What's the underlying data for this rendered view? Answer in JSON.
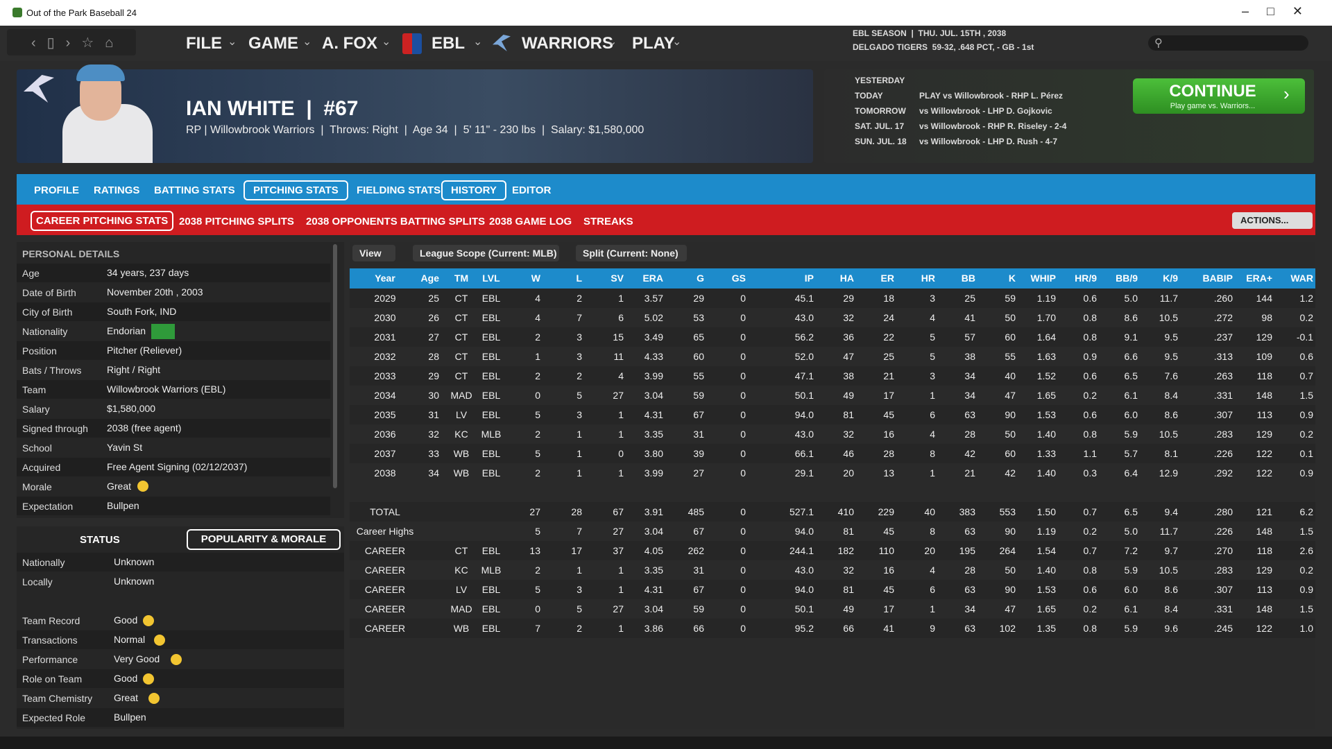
{
  "window": {
    "title": "Out of the Park Baseball 24"
  },
  "nav": {
    "menus": [
      "FILE",
      "GAME",
      "A. FOX",
      "EBL",
      "WARRIORS",
      "PLAY"
    ]
  },
  "league_status": {
    "season": "EBL SEASON  |  THU. JUL. 15TH , 2038",
    "standing": "DELGADO TIGERS  59-32, .648 PCT, - GB - 1st"
  },
  "schedule": {
    "rows": [
      {
        "day": "YESTERDAY"
      },
      {
        "day": "TODAY",
        "game": "PLAY vs Willowbrook - RHP L. Pérez"
      },
      {
        "day": "TOMORROW",
        "game": "vs Willowbrook - LHP D. Gojkovic"
      },
      {
        "day": "SAT. JUL. 17",
        "game": "vs Willowbrook - RHP R. Riseley - 2-4"
      },
      {
        "day": "SUN. JUL. 18",
        "game": "vs Willowbrook - LHP D. Rush - 4-7"
      }
    ]
  },
  "continue": {
    "label": "CONTINUE",
    "subtitle": "Play game vs. Warriors..."
  },
  "player": {
    "name": "IAN WHITE  |  #67",
    "info": "RP | Willowbrook Warriors  |  Throws: Right  |  Age 34  |  5' 11\" - 230 lbs  |  Salary: $1,580,000"
  },
  "tabs": [
    "PROFILE",
    "RATINGS",
    "BATTING STATS",
    "PITCHING STATS",
    "FIELDING STATS",
    "HISTORY",
    "EDITOR"
  ],
  "subtabs": [
    "CAREER PITCHING STATS",
    "2038 PITCHING SPLITS",
    "2038 OPPONENTS BATTING SPLITS",
    "2038 GAME LOG",
    "STREAKS"
  ],
  "actions": "ACTIONS...",
  "personal_details": {
    "title": "PERSONAL DETAILS",
    "rows": [
      [
        "Age",
        "34 years, 237 days"
      ],
      [
        "Date of Birth",
        "November 20th , 2003"
      ],
      [
        "City of Birth",
        "South Fork, IND"
      ],
      [
        "Nationality",
        "Endorian"
      ],
      [
        "Position",
        "Pitcher (Reliever)"
      ],
      [
        "Bats / Throws",
        "Right / Right"
      ],
      [
        "Team",
        "Willowbrook Warriors (EBL)"
      ],
      [
        "Salary",
        "$1,580,000"
      ],
      [
        "Signed through",
        "2038 (free agent)"
      ],
      [
        "School",
        "Yavin St"
      ],
      [
        "Acquired",
        "Free Agent Signing (02/12/2037)"
      ],
      [
        "Morale",
        "Great"
      ],
      [
        "Expectation",
        "Bullpen"
      ]
    ]
  },
  "status": {
    "tabs": [
      "STATUS",
      "POPULARITY & MORALE"
    ],
    "groups": [
      [
        [
          "Nationally",
          "Unknown"
        ],
        [
          "Locally",
          "Unknown"
        ]
      ],
      [
        [
          "Team Record",
          "Good"
        ],
        [
          "Transactions",
          "Normal"
        ],
        [
          "Performance",
          "Very Good"
        ],
        [
          "Role on Team",
          "Good"
        ],
        [
          "Team Chemistry",
          "Great"
        ],
        [
          "Expected Role",
          "Bullpen"
        ]
      ]
    ]
  },
  "filters": [
    "View",
    "League Scope (Current: MLB)",
    "Split (Current: None)"
  ],
  "stats_table": {
    "columns": [
      "Year",
      "Age",
      "TM",
      "LVL",
      "W",
      "L",
      "SV",
      "ERA",
      "G",
      "GS",
      "IP",
      "HA",
      "ER",
      "HR",
      "BB",
      "K",
      "WHIP",
      "HR/9",
      "BB/9",
      "K/9",
      "BABIP",
      "ERA+",
      "WAR"
    ],
    "rows": [
      [
        "2029",
        "25",
        "CT",
        "EBL",
        "4",
        "2",
        "1",
        "3.57",
        "29",
        "0",
        "45.1",
        "29",
        "18",
        "3",
        "25",
        "59",
        "1.19",
        "0.6",
        "5.0",
        "11.7",
        ".260",
        "144",
        "1.2"
      ],
      [
        "2030",
        "26",
        "CT",
        "EBL",
        "4",
        "7",
        "6",
        "5.02",
        "53",
        "0",
        "43.0",
        "32",
        "24",
        "4",
        "41",
        "50",
        "1.70",
        "0.8",
        "8.6",
        "10.5",
        ".272",
        "98",
        "0.2"
      ],
      [
        "2031",
        "27",
        "CT",
        "EBL",
        "2",
        "3",
        "15",
        "3.49",
        "65",
        "0",
        "56.2",
        "36",
        "22",
        "5",
        "57",
        "60",
        "1.64",
        "0.8",
        "9.1",
        "9.5",
        ".237",
        "129",
        "-0.1"
      ],
      [
        "2032",
        "28",
        "CT",
        "EBL",
        "1",
        "3",
        "11",
        "4.33",
        "60",
        "0",
        "52.0",
        "47",
        "25",
        "5",
        "38",
        "55",
        "1.63",
        "0.9",
        "6.6",
        "9.5",
        ".313",
        "109",
        "0.6"
      ],
      [
        "2033",
        "29",
        "CT",
        "EBL",
        "2",
        "2",
        "4",
        "3.99",
        "55",
        "0",
        "47.1",
        "38",
        "21",
        "3",
        "34",
        "40",
        "1.52",
        "0.6",
        "6.5",
        "7.6",
        ".263",
        "118",
        "0.7"
      ],
      [
        "2034",
        "30",
        "MAD",
        "EBL",
        "0",
        "5",
        "27",
        "3.04",
        "59",
        "0",
        "50.1",
        "49",
        "17",
        "1",
        "34",
        "47",
        "1.65",
        "0.2",
        "6.1",
        "8.4",
        ".331",
        "148",
        "1.5"
      ],
      [
        "2035",
        "31",
        "LV",
        "EBL",
        "5",
        "3",
        "1",
        "4.31",
        "67",
        "0",
        "94.0",
        "81",
        "45",
        "6",
        "63",
        "90",
        "1.53",
        "0.6",
        "6.0",
        "8.6",
        ".307",
        "113",
        "0.9"
      ],
      [
        "2036",
        "32",
        "KC",
        "MLB",
        "2",
        "1",
        "1",
        "3.35",
        "31",
        "0",
        "43.0",
        "32",
        "16",
        "4",
        "28",
        "50",
        "1.40",
        "0.8",
        "5.9",
        "10.5",
        ".283",
        "129",
        "0.2"
      ],
      [
        "2037",
        "33",
        "WB",
        "EBL",
        "5",
        "1",
        "0",
        "3.80",
        "39",
        "0",
        "66.1",
        "46",
        "28",
        "8",
        "42",
        "60",
        "1.33",
        "1.1",
        "5.7",
        "8.1",
        ".226",
        "122",
        "0.1"
      ],
      [
        "2038",
        "34",
        "WB",
        "EBL",
        "2",
        "1",
        "1",
        "3.99",
        "27",
        "0",
        "29.1",
        "20",
        "13",
        "1",
        "21",
        "42",
        "1.40",
        "0.3",
        "6.4",
        "12.9",
        ".292",
        "122",
        "0.9"
      ]
    ],
    "summary_rows": [
      [
        "TOTAL",
        null,
        null,
        null,
        "27",
        "28",
        "67",
        "3.91",
        "485",
        "0",
        "527.1",
        "410",
        "229",
        "40",
        "383",
        "553",
        "1.50",
        "0.7",
        "6.5",
        "9.4",
        ".280",
        "121",
        "6.2"
      ],
      [
        "Career Highs",
        null,
        null,
        null,
        "5",
        "7",
        "27",
        "3.04",
        "67",
        "0",
        "94.0",
        "81",
        "45",
        "8",
        "63",
        "90",
        "1.19",
        "0.2",
        "5.0",
        "11.7",
        ".226",
        "148",
        "1.5"
      ],
      [
        "CAREER",
        null,
        "CT",
        "EBL",
        "13",
        "17",
        "37",
        "4.05",
        "262",
        "0",
        "244.1",
        "182",
        "110",
        "20",
        "195",
        "264",
        "1.54",
        "0.7",
        "7.2",
        "9.7",
        ".270",
        "118",
        "2.6"
      ],
      [
        "CAREER",
        null,
        "KC",
        "MLB",
        "2",
        "1",
        "1",
        "3.35",
        "31",
        "0",
        "43.0",
        "32",
        "16",
        "4",
        "28",
        "50",
        "1.40",
        "0.8",
        "5.9",
        "10.5",
        ".283",
        "129",
        "0.2"
      ],
      [
        "CAREER",
        null,
        "LV",
        "EBL",
        "5",
        "3",
        "1",
        "4.31",
        "67",
        "0",
        "94.0",
        "81",
        "45",
        "6",
        "63",
        "90",
        "1.53",
        "0.6",
        "6.0",
        "8.6",
        ".307",
        "113",
        "0.9"
      ],
      [
        "CAREER",
        null,
        "MAD",
        "EBL",
        "0",
        "5",
        "27",
        "3.04",
        "59",
        "0",
        "50.1",
        "49",
        "17",
        "1",
        "34",
        "47",
        "1.65",
        "0.2",
        "6.1",
        "8.4",
        ".331",
        "148",
        "1.5"
      ],
      [
        "CAREER",
        null,
        "WB",
        "EBL",
        "7",
        "2",
        "1",
        "3.86",
        "66",
        "0",
        "95.2",
        "66",
        "41",
        "9",
        "63",
        "102",
        "1.35",
        "0.8",
        "5.9",
        "9.6",
        ".245",
        "122",
        "1.0"
      ]
    ]
  }
}
